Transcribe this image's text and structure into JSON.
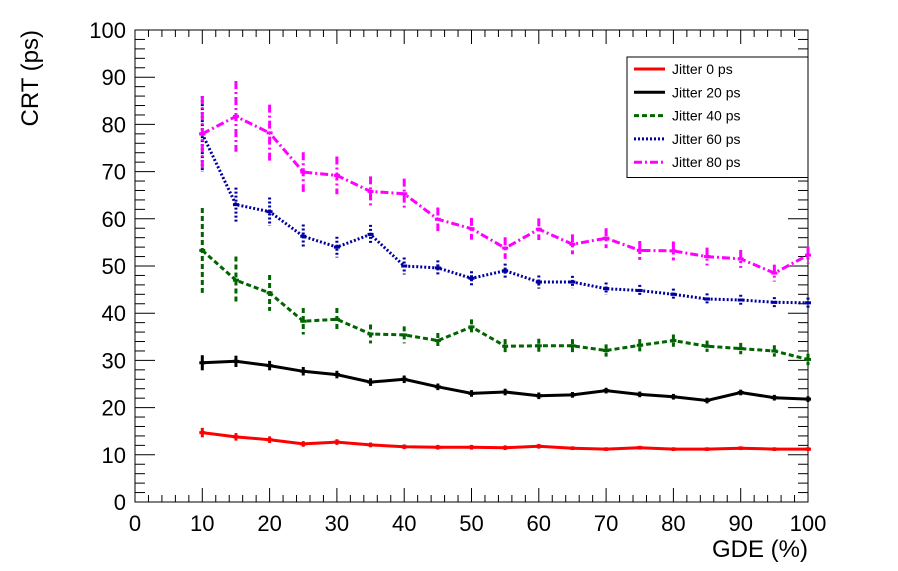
{
  "chart_data": {
    "type": "line",
    "title": "",
    "xlabel": "GDE (%)",
    "ylabel": "CRT (ps)",
    "xlim": [
      0,
      100
    ],
    "ylim": [
      0,
      100
    ],
    "xticks": [
      "0",
      "10",
      "20",
      "30",
      "40",
      "50",
      "60",
      "70",
      "80",
      "90",
      "100"
    ],
    "yticks": [
      "0",
      "10",
      "20",
      "30",
      "40",
      "50",
      "60",
      "70",
      "80",
      "90",
      "100"
    ],
    "grid": false,
    "legend_position": "top-right",
    "x": [
      10,
      15,
      20,
      25,
      30,
      35,
      40,
      45,
      50,
      55,
      60,
      65,
      70,
      75,
      80,
      85,
      90,
      95,
      100
    ],
    "series": [
      {
        "name": "Jitter 0 ps",
        "color": "#ff0000",
        "style": "solid",
        "values": [
          14.7,
          13.8,
          13.2,
          12.3,
          12.7,
          12.1,
          11.7,
          11.6,
          11.6,
          11.5,
          11.8,
          11.4,
          11.2,
          11.5,
          11.2,
          11.2,
          11.4,
          11.2,
          11.2
        ],
        "errors": [
          1.0,
          0.8,
          0.7,
          0.6,
          0.6,
          0.5,
          0.5,
          0.5,
          0.5,
          0.5,
          0.5,
          0.4,
          0.4,
          0.4,
          0.4,
          0.4,
          0.4,
          0.4,
          0.4
        ]
      },
      {
        "name": "Jitter 20 ps",
        "color": "#000000",
        "style": "solid",
        "values": [
          29.5,
          29.8,
          28.9,
          27.7,
          27.0,
          25.4,
          26.0,
          24.4,
          23.0,
          23.3,
          22.5,
          22.7,
          23.6,
          22.8,
          22.3,
          21.5,
          23.2,
          22.1,
          21.8
        ],
        "errors": [
          1.6,
          1.2,
          1.0,
          0.9,
          0.8,
          0.8,
          0.8,
          0.7,
          0.7,
          0.7,
          0.7,
          0.6,
          0.6,
          0.6,
          0.6,
          0.6,
          0.6,
          0.6,
          0.6
        ]
      },
      {
        "name": "Jitter 40 ps",
        "color": "#006400",
        "style": "dashed",
        "values": [
          53.3,
          47.0,
          44.3,
          38.3,
          38.7,
          35.6,
          35.4,
          34.2,
          37.1,
          33.0,
          33.1,
          33.1,
          32.1,
          33.2,
          34.2,
          33.0,
          32.5,
          32.0,
          30.2
        ],
        "errors": [
          9.0,
          5.0,
          3.8,
          2.8,
          2.4,
          2.0,
          1.8,
          1.6,
          1.6,
          1.5,
          1.5,
          1.4,
          1.3,
          1.3,
          1.3,
          1.2,
          1.2,
          1.2,
          1.2
        ]
      },
      {
        "name": "Jitter 60 ps",
        "color": "#0000a0",
        "style": "dotted",
        "values": [
          78.0,
          63.0,
          61.5,
          56.3,
          54.0,
          56.7,
          50.0,
          49.6,
          47.4,
          49.0,
          46.6,
          46.6,
          45.2,
          44.8,
          44.0,
          43.0,
          42.8,
          42.3,
          42.2
        ],
        "errors": [
          8.0,
          3.6,
          3.0,
          2.5,
          2.2,
          2.0,
          1.8,
          1.6,
          1.5,
          1.5,
          1.4,
          1.3,
          1.3,
          1.2,
          1.2,
          1.2,
          1.1,
          1.1,
          1.1
        ]
      },
      {
        "name": "Jitter 80 ps",
        "color": "#ff00ff",
        "style": "dashdot",
        "values": [
          78.0,
          81.7,
          78.2,
          69.9,
          69.2,
          65.8,
          65.3,
          59.9,
          57.9,
          53.8,
          57.8,
          54.6,
          55.9,
          53.3,
          53.2,
          52.0,
          51.5,
          48.5,
          52.3
        ],
        "errors": [
          8.0,
          7.5,
          6.0,
          4.2,
          4.0,
          3.2,
          3.2,
          2.5,
          2.3,
          2.3,
          2.3,
          2.1,
          2.1,
          2.0,
          2.0,
          1.9,
          1.9,
          1.8,
          1.8
        ]
      }
    ]
  }
}
